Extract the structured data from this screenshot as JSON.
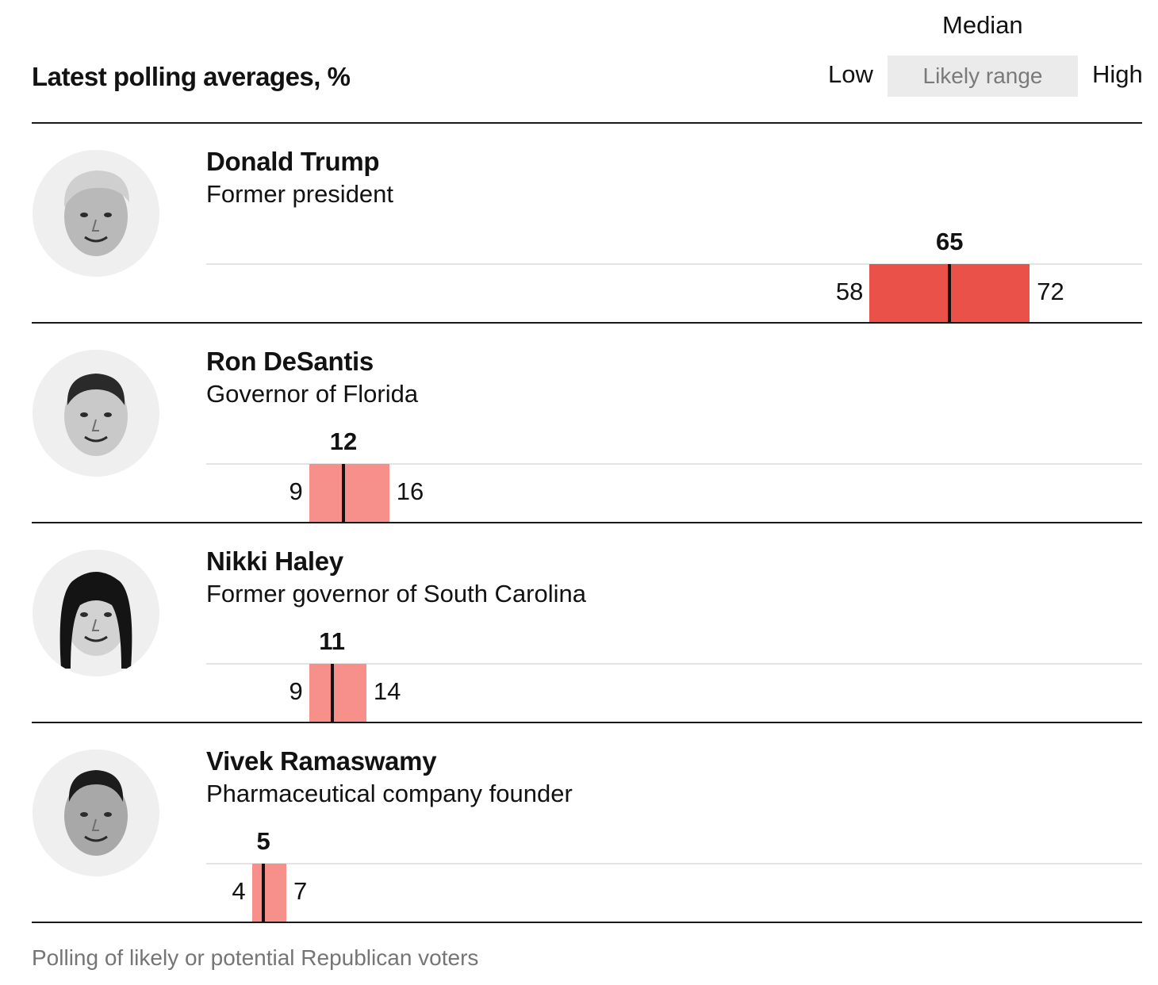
{
  "title": "Latest polling averages, %",
  "legend": {
    "median": "Median",
    "low": "Low",
    "range": "Likely range",
    "high": "High"
  },
  "colors": {
    "leader_bar": "#ea5249",
    "other_bar": "#f7908a",
    "median": "#121212"
  },
  "chart_data": {
    "type": "bar",
    "title": "Latest polling averages, %",
    "unit": "%",
    "categories": [
      "Donald Trump",
      "Ron DeSantis",
      "Nikki Haley",
      "Vivek Ramaswamy"
    ],
    "xlim": [
      0,
      80
    ],
    "series": [
      {
        "name": "Likely range",
        "rows": [
          {
            "name": "Donald Trump",
            "role": "Former president",
            "low": 58,
            "median": 65,
            "high": 72,
            "icon": "donald-trump-portrait-icon"
          },
          {
            "name": "Ron DeSantis",
            "role": "Governor of Florida",
            "low": 9,
            "median": 12,
            "high": 16,
            "icon": "ron-desantis-portrait-icon"
          },
          {
            "name": "Nikki Haley",
            "role": "Former governor of South Carolina",
            "low": 9,
            "median": 11,
            "high": 14,
            "icon": "nikki-haley-portrait-icon"
          },
          {
            "name": "Vivek Ramaswamy",
            "role": "Pharmaceutical company founder",
            "low": 4,
            "median": 5,
            "high": 7,
            "icon": "vivek-ramaswamy-portrait-icon"
          }
        ]
      }
    ]
  },
  "footnote": "Polling of likely or potential Republican voters"
}
